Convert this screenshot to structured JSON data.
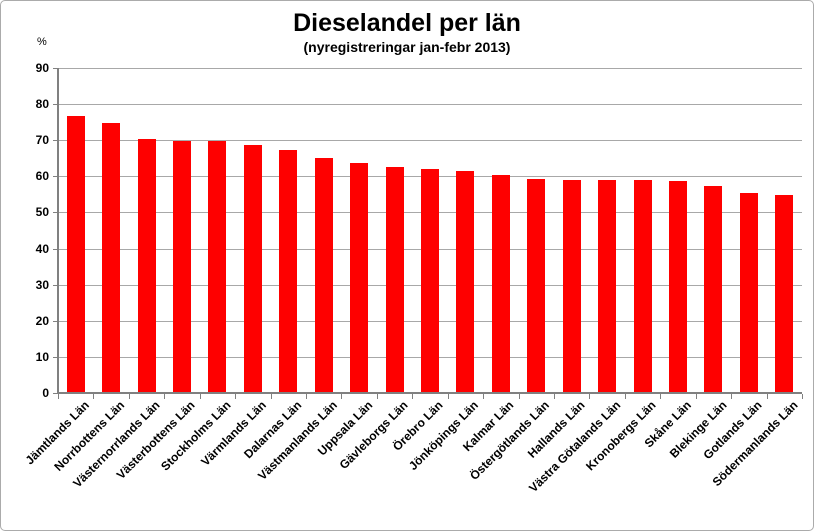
{
  "colors": {
    "bar": "#fe0000",
    "gridline": "#a8a8a8",
    "axis": "#808080",
    "tick": "#808080",
    "text": "#000000",
    "frame_border": "#ababab",
    "background": "#ffffff"
  },
  "chart_data": {
    "type": "bar",
    "title": "Dieselandel per län",
    "subtitle": "(nyregistreringar jan-febr 2013)",
    "ylabel": "%",
    "xlabel": "",
    "ylim": [
      0,
      90
    ],
    "yticks": [
      0,
      10,
      20,
      30,
      40,
      50,
      60,
      70,
      80,
      90
    ],
    "grid": true,
    "legend": "none",
    "categories": [
      "Jämtlands Län",
      "Norrbottens Län",
      "Västernorrlands Län",
      "Västerbottens Län",
      "Stockholms Län",
      "Värmlands Län",
      "Dalarnas Län",
      "Västmanlands Län",
      "Uppsala Län",
      "Gävleborgs Län",
      "Örebro Län",
      "Jönköpings Län",
      "Kalmar Län",
      "Östergötlands Län",
      "Hallands Län",
      "Västra Götalands Län",
      "Kronobergs Län",
      "Skåne Län",
      "Blekinge Län",
      "Gotlands Län",
      "Södermanlands Län"
    ],
    "values": [
      76.6,
      74.9,
      70.3,
      69.9,
      69.8,
      68.6,
      67.3,
      65.2,
      63.8,
      62.7,
      61.9,
      61.4,
      60.3,
      59.3,
      59.1,
      59.0,
      58.9,
      58.8,
      57.3,
      55.4,
      54.8
    ]
  }
}
